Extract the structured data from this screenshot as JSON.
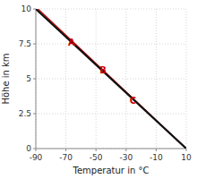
{
  "chart_data": {
    "type": "line",
    "xlabel": "Temperatur in °C",
    "ylabel": "Höhe in km",
    "xlim": [
      -90,
      10
    ],
    "ylim": [
      0,
      10
    ],
    "xticks": [
      -90,
      -70,
      -50,
      -30,
      -10,
      10
    ],
    "yticks": [
      0,
      2.5,
      5,
      7.5,
      10
    ],
    "grid": true,
    "series": [
      {
        "x": [
          -90,
          10
        ],
        "values": [
          10,
          0
        ],
        "color": "#111111"
      },
      {
        "x": [
          -88.5,
          10
        ],
        "values": [
          10,
          0
        ],
        "color": "#cc0000"
      }
    ],
    "annotations": [
      {
        "text": "A",
        "x": -71,
        "y": 8.1,
        "color": "#cc0000"
      },
      {
        "text": "B",
        "x": -50,
        "y": 6.1,
        "color": "#cc0000"
      },
      {
        "text": "C",
        "x": -30,
        "y": 3.9,
        "color": "#cc0000"
      }
    ]
  }
}
